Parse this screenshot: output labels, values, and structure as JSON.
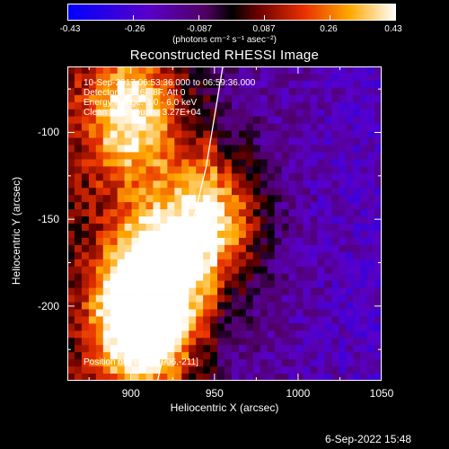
{
  "chart_data": {
    "type": "heatmap",
    "title": "Reconstructed RHESSI Image",
    "xlabel": "Heliocentric X (arcsec)",
    "ylabel": "Heliocentric Y (arcsec)",
    "xlim": [
      862,
      1050
    ],
    "ylim": [
      -243,
      -62
    ],
    "x_ticks": [
      900,
      950,
      1000,
      1050
    ],
    "y_ticks": [
      -100,
      -150,
      -200
    ],
    "colorbar": {
      "range": [
        -0.43,
        0.43
      ],
      "ticks": [
        "-0.43",
        "-0.26",
        "-0.087",
        "0.087",
        "0.26",
        "0.43"
      ],
      "unit_label": "(photons cm⁻² s⁻¹ asec⁻²)"
    },
    "annotations": {
      "time_range": "10-Sep-2017 06:53:36.000 to 06:59:36.000",
      "detectors": "Detectors: 3F 6F 8F, Att 0",
      "energy": "Energy Range: 3.0 - 6.0 keV",
      "method": "Clean     Total counts: 3.27E+04",
      "peak": "Position of Peak = [906,-211]"
    },
    "limb_curve": [
      [
        916,
        -243
      ],
      [
        926,
        -200
      ],
      [
        935,
        -160
      ],
      [
        945,
        -120
      ],
      [
        955,
        -62
      ]
    ],
    "source_regions": [
      {
        "x": 906,
        "y": -211,
        "value": 0.43
      },
      {
        "x": 900,
        "y": -90,
        "value": 0.3
      },
      {
        "x": 950,
        "y": -150,
        "value": 0.32
      },
      {
        "x": 915,
        "y": -180,
        "value": 0.28
      }
    ]
  },
  "footer": {
    "date": "6-Sep-2022 15:48"
  }
}
